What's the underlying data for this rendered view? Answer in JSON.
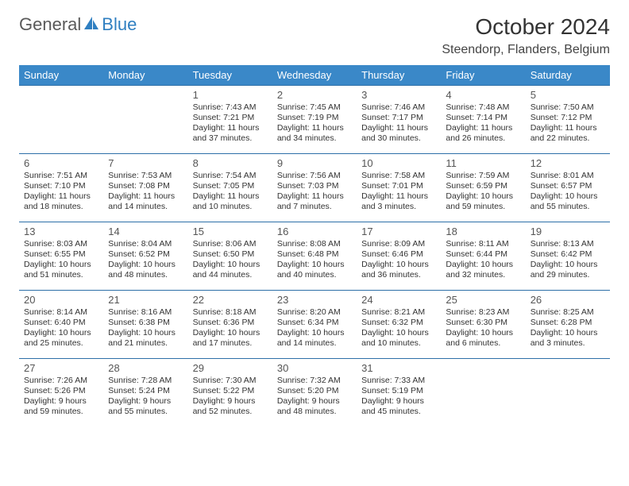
{
  "brand": {
    "general": "General",
    "blue": "Blue",
    "logo_color": "#2f7fc1"
  },
  "title": "October 2024",
  "location": "Steendorp, Flanders, Belgium",
  "header_bg": "#3a88c8",
  "header_fg": "#ffffff",
  "row_border": "#2d6fa8",
  "text_color": "#333333",
  "day_headers": [
    "Sunday",
    "Monday",
    "Tuesday",
    "Wednesday",
    "Thursday",
    "Friday",
    "Saturday"
  ],
  "weeks": [
    [
      null,
      null,
      {
        "n": "1",
        "sr": "7:43 AM",
        "ss": "7:21 PM",
        "dl": "11 hours and 37 minutes."
      },
      {
        "n": "2",
        "sr": "7:45 AM",
        "ss": "7:19 PM",
        "dl": "11 hours and 34 minutes."
      },
      {
        "n": "3",
        "sr": "7:46 AM",
        "ss": "7:17 PM",
        "dl": "11 hours and 30 minutes."
      },
      {
        "n": "4",
        "sr": "7:48 AM",
        "ss": "7:14 PM",
        "dl": "11 hours and 26 minutes."
      },
      {
        "n": "5",
        "sr": "7:50 AM",
        "ss": "7:12 PM",
        "dl": "11 hours and 22 minutes."
      }
    ],
    [
      {
        "n": "6",
        "sr": "7:51 AM",
        "ss": "7:10 PM",
        "dl": "11 hours and 18 minutes."
      },
      {
        "n": "7",
        "sr": "7:53 AM",
        "ss": "7:08 PM",
        "dl": "11 hours and 14 minutes."
      },
      {
        "n": "8",
        "sr": "7:54 AM",
        "ss": "7:05 PM",
        "dl": "11 hours and 10 minutes."
      },
      {
        "n": "9",
        "sr": "7:56 AM",
        "ss": "7:03 PM",
        "dl": "11 hours and 7 minutes."
      },
      {
        "n": "10",
        "sr": "7:58 AM",
        "ss": "7:01 PM",
        "dl": "11 hours and 3 minutes."
      },
      {
        "n": "11",
        "sr": "7:59 AM",
        "ss": "6:59 PM",
        "dl": "10 hours and 59 minutes."
      },
      {
        "n": "12",
        "sr": "8:01 AM",
        "ss": "6:57 PM",
        "dl": "10 hours and 55 minutes."
      }
    ],
    [
      {
        "n": "13",
        "sr": "8:03 AM",
        "ss": "6:55 PM",
        "dl": "10 hours and 51 minutes."
      },
      {
        "n": "14",
        "sr": "8:04 AM",
        "ss": "6:52 PM",
        "dl": "10 hours and 48 minutes."
      },
      {
        "n": "15",
        "sr": "8:06 AM",
        "ss": "6:50 PM",
        "dl": "10 hours and 44 minutes."
      },
      {
        "n": "16",
        "sr": "8:08 AM",
        "ss": "6:48 PM",
        "dl": "10 hours and 40 minutes."
      },
      {
        "n": "17",
        "sr": "8:09 AM",
        "ss": "6:46 PM",
        "dl": "10 hours and 36 minutes."
      },
      {
        "n": "18",
        "sr": "8:11 AM",
        "ss": "6:44 PM",
        "dl": "10 hours and 32 minutes."
      },
      {
        "n": "19",
        "sr": "8:13 AM",
        "ss": "6:42 PM",
        "dl": "10 hours and 29 minutes."
      }
    ],
    [
      {
        "n": "20",
        "sr": "8:14 AM",
        "ss": "6:40 PM",
        "dl": "10 hours and 25 minutes."
      },
      {
        "n": "21",
        "sr": "8:16 AM",
        "ss": "6:38 PM",
        "dl": "10 hours and 21 minutes."
      },
      {
        "n": "22",
        "sr": "8:18 AM",
        "ss": "6:36 PM",
        "dl": "10 hours and 17 minutes."
      },
      {
        "n": "23",
        "sr": "8:20 AM",
        "ss": "6:34 PM",
        "dl": "10 hours and 14 minutes."
      },
      {
        "n": "24",
        "sr": "8:21 AM",
        "ss": "6:32 PM",
        "dl": "10 hours and 10 minutes."
      },
      {
        "n": "25",
        "sr": "8:23 AM",
        "ss": "6:30 PM",
        "dl": "10 hours and 6 minutes."
      },
      {
        "n": "26",
        "sr": "8:25 AM",
        "ss": "6:28 PM",
        "dl": "10 hours and 3 minutes."
      }
    ],
    [
      {
        "n": "27",
        "sr": "7:26 AM",
        "ss": "5:26 PM",
        "dl": "9 hours and 59 minutes."
      },
      {
        "n": "28",
        "sr": "7:28 AM",
        "ss": "5:24 PM",
        "dl": "9 hours and 55 minutes."
      },
      {
        "n": "29",
        "sr": "7:30 AM",
        "ss": "5:22 PM",
        "dl": "9 hours and 52 minutes."
      },
      {
        "n": "30",
        "sr": "7:32 AM",
        "ss": "5:20 PM",
        "dl": "9 hours and 48 minutes."
      },
      {
        "n": "31",
        "sr": "7:33 AM",
        "ss": "5:19 PM",
        "dl": "9 hours and 45 minutes."
      },
      null,
      null
    ]
  ],
  "labels": {
    "sunrise": "Sunrise:",
    "sunset": "Sunset:",
    "daylight": "Daylight:"
  }
}
